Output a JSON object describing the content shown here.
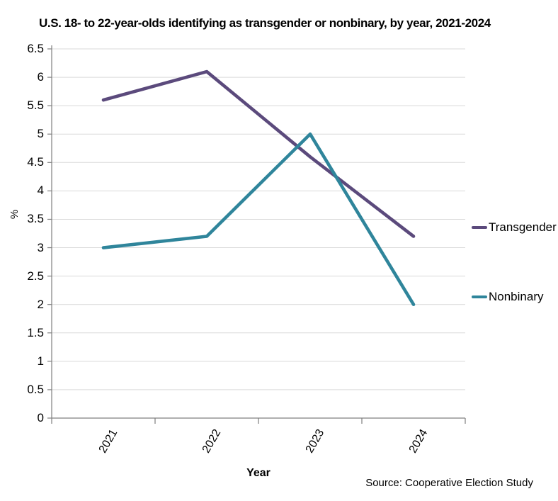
{
  "title": "U.S. 18- to 22-year-olds identifying as transgender or nonbinary, by year, 2021-2024",
  "source": "Source: Cooperative Election Study",
  "chart_data": {
    "type": "line",
    "title": "U.S. 18- to 22-year-olds identifying as transgender or nonbinary, by year, 2021-2024",
    "categories": [
      "2021",
      "2022",
      "2023",
      "2024"
    ],
    "series": [
      {
        "name": "Transgender",
        "color": "#5B4A7C",
        "values": [
          5.6,
          6.1,
          4.6,
          3.2
        ]
      },
      {
        "name": "Nonbinary",
        "color": "#2F859B",
        "values": [
          3.0,
          3.2,
          5.0,
          2.0
        ]
      }
    ],
    "xlabel": "Year",
    "ylabel": "%",
    "ylim": [
      0,
      6.5
    ],
    "ytick_step": 0.5,
    "y_tick_labels": [
      "0",
      "0.5",
      "1",
      "1.5",
      "2",
      "2.5",
      "3",
      "3.5",
      "4",
      "4.5",
      "5",
      "5.5",
      "6",
      "6.5"
    ],
    "grid": true,
    "legend_position": "right",
    "source": "Source: Cooperative Election Study"
  },
  "colors": {
    "background": "#FFFFFF",
    "gridline": "#D9D9D9",
    "axis": "#7F7F7F",
    "text": "#000000"
  }
}
